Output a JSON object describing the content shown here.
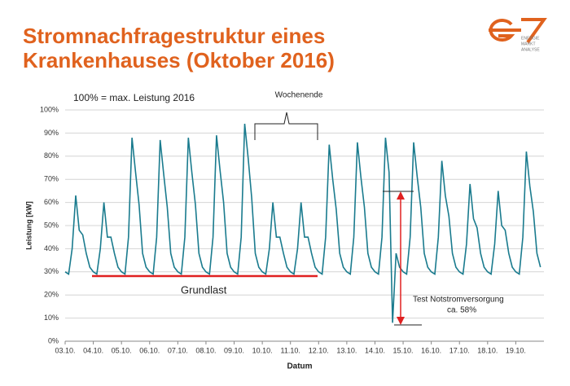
{
  "chart_data": {
    "type": "line",
    "title": [
      "Stromnachfragestruktur eines",
      "Krankenhauses (Oktober 2016)"
    ],
    "ylabel": "Leistung [kW]",
    "xlabel": "Datum",
    "annotations": [
      "100% = max. Leistung 2016",
      "Wochenende",
      "Grundlast",
      "Test Notstromversorgung",
      "ca. 58%"
    ],
    "xlim": [
      0,
      17
    ],
    "ylim": [
      0,
      100
    ],
    "grid": true,
    "xticks": [
      {
        "value": 0,
        "label": "03.10."
      },
      {
        "value": 1,
        "label": "04.10."
      },
      {
        "value": 2,
        "label": "05.10."
      },
      {
        "value": 3,
        "label": "06.10."
      },
      {
        "value": 4,
        "label": "07.10."
      },
      {
        "value": 5,
        "label": "08.10."
      },
      {
        "value": 6,
        "label": "09.10."
      },
      {
        "value": 7,
        "label": "10.10."
      },
      {
        "value": 8,
        "label": "11.10."
      },
      {
        "value": 9,
        "label": "12.10."
      },
      {
        "value": 10,
        "label": "13.10."
      },
      {
        "value": 11,
        "label": "14.10."
      },
      {
        "value": 12,
        "label": "15.10."
      },
      {
        "value": 13,
        "label": "16.10."
      },
      {
        "value": 14,
        "label": "17.10."
      },
      {
        "value": 15,
        "label": "18.10."
      },
      {
        "value": 16,
        "label": "19.10."
      }
    ],
    "yticks": [
      {
        "value": 0,
        "label": "0%"
      },
      {
        "value": 10,
        "label": "10%"
      },
      {
        "value": 20,
        "label": "20%"
      },
      {
        "value": 30,
        "label": "30%"
      },
      {
        "value": 40,
        "label": "40%"
      },
      {
        "value": 50,
        "label": "50%"
      },
      {
        "value": 60,
        "label": "60%"
      },
      {
        "value": 70,
        "label": "70%"
      },
      {
        "value": 80,
        "label": "80%"
      },
      {
        "value": 90,
        "label": "90%"
      },
      {
        "value": 100,
        "label": "100%"
      }
    ],
    "x": [
      0,
      0.125,
      0.25,
      0.375,
      0.5,
      0.625,
      0.75,
      0.875,
      1,
      1.125,
      1.25,
      1.375,
      1.5,
      1.625,
      1.75,
      1.875,
      2,
      2.125,
      2.25,
      2.375,
      2.5,
      2.625,
      2.75,
      2.875,
      3,
      3.125,
      3.25,
      3.375,
      3.5,
      3.625,
      3.75,
      3.875,
      4,
      4.125,
      4.25,
      4.375,
      4.5,
      4.625,
      4.75,
      4.875,
      5,
      5.125,
      5.25,
      5.375,
      5.5,
      5.625,
      5.75,
      5.875,
      6,
      6.125,
      6.25,
      6.375,
      6.5,
      6.625,
      6.75,
      6.875,
      7,
      7.125,
      7.25,
      7.375,
      7.5,
      7.625,
      7.75,
      7.875,
      8,
      8.125,
      8.25,
      8.375,
      8.5,
      8.625,
      8.75,
      8.875,
      9,
      9.125,
      9.25,
      9.375,
      9.5,
      9.625,
      9.75,
      9.875,
      10,
      10.125,
      10.25,
      10.375,
      10.5,
      10.625,
      10.75,
      10.875,
      11,
      11.125,
      11.25,
      11.375,
      11.5,
      11.625,
      11.75,
      11.875,
      12,
      12.125,
      12.25,
      12.375,
      12.5,
      12.625,
      12.75,
      12.875,
      13,
      13.125,
      13.25,
      13.375,
      13.5,
      13.625,
      13.75,
      13.875,
      14,
      14.125,
      14.25,
      14.375,
      14.5,
      14.625,
      14.75,
      14.875,
      15,
      15.125,
      15.25,
      15.375,
      15.5,
      15.625,
      15.75,
      15.875,
      16,
      16.125,
      16.25,
      16.375,
      16.5,
      16.625,
      16.75,
      16.875
    ],
    "series": [
      {
        "color": "#1a7b8e",
        "values": [
          30,
          29,
          40,
          63,
          48,
          46,
          38,
          32,
          30,
          29,
          40,
          60,
          45,
          45,
          38,
          32,
          30,
          29,
          45,
          88,
          73,
          59,
          38,
          32,
          30,
          29,
          45,
          87,
          72,
          58,
          38,
          32,
          30,
          29,
          45,
          88,
          73,
          59,
          38,
          32,
          30,
          29,
          45,
          89,
          74,
          60,
          38,
          32,
          30,
          29,
          45,
          94,
          79,
          62,
          38,
          32,
          30,
          29,
          40,
          60,
          45,
          45,
          38,
          32,
          30,
          29,
          40,
          60,
          45,
          45,
          38,
          32,
          30,
          29,
          45,
          85,
          70,
          57,
          38,
          32,
          30,
          29,
          45,
          86,
          71,
          58,
          38,
          32,
          30,
          29,
          45,
          88,
          73,
          8,
          38,
          32,
          30,
          29,
          45,
          86,
          71,
          58,
          38,
          32,
          30,
          29,
          45,
          78,
          63,
          54,
          38,
          32,
          30,
          29,
          42,
          68,
          53,
          49,
          38,
          32,
          30,
          29,
          42,
          65,
          50,
          48,
          38,
          32,
          30,
          29,
          45,
          82,
          67,
          56,
          38,
          32
        ]
      }
    ]
  },
  "logo": [
    "ENERGIE",
    "MARKT",
    "ANALYSE"
  ]
}
